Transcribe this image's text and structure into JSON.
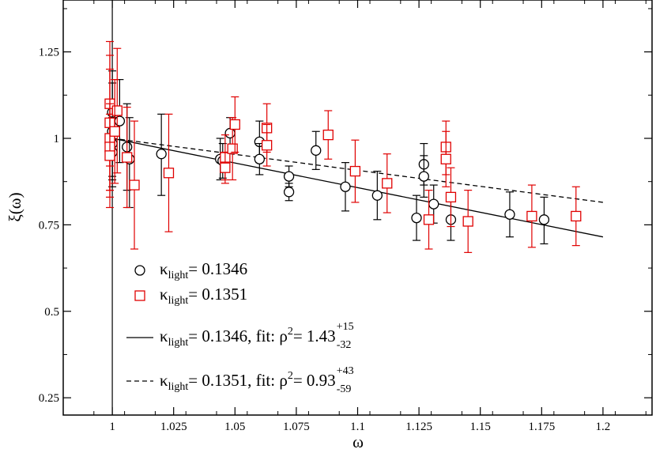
{
  "chart_data": {
    "type": "scatter",
    "title": "",
    "xlabel": "ω",
    "ylabel": "ξ(ω)",
    "xlim": [
      0.98,
      1.22
    ],
    "ylim": [
      0.2,
      1.4
    ],
    "xticks": [
      {
        "value": 1.0,
        "label": "1"
      },
      {
        "value": 1.025,
        "label": "1.025"
      },
      {
        "value": 1.05,
        "label": "1.05"
      },
      {
        "value": 1.075,
        "label": "1.075"
      },
      {
        "value": 1.1,
        "label": "1.1"
      },
      {
        "value": 1.125,
        "label": "1.125"
      },
      {
        "value": 1.15,
        "label": "1.15"
      },
      {
        "value": 1.175,
        "label": "1.175"
      },
      {
        "value": 1.2,
        "label": "1.2"
      }
    ],
    "yticks": [
      {
        "value": 0.25,
        "label": "0.25"
      },
      {
        "value": 0.5,
        "label": "0.5"
      },
      {
        "value": 0.75,
        "label": "0.75"
      },
      {
        "value": 1.0,
        "label": "1"
      },
      {
        "value": 1.25,
        "label": "1.25"
      }
    ],
    "vline_x": 1.0,
    "legend_position": "bottom-left",
    "series": [
      {
        "name": "κlight= 0.1346",
        "legend": {
          "symbol": "κ",
          "sub": "light",
          "text": "= 0.1346"
        },
        "marker": "circle",
        "color": "#000000",
        "points": [
          {
            "x": 1.0,
            "y": 1.075,
            "lo": 0.955,
            "hi": 1.195
          },
          {
            "x": 1.0,
            "y": 1.02,
            "lo": 0.89,
            "hi": 1.16
          },
          {
            "x": 1.0,
            "y": 0.985,
            "lo": 0.88,
            "hi": 1.09
          },
          {
            "x": 1.0,
            "y": 0.96,
            "lo": 0.86,
            "hi": 1.06
          },
          {
            "x": 1.003,
            "y": 1.05,
            "lo": 0.93,
            "hi": 1.17
          },
          {
            "x": 1.006,
            "y": 0.975,
            "lo": 0.85,
            "hi": 1.1
          },
          {
            "x": 1.007,
            "y": 0.94,
            "lo": 0.8,
            "hi": 1.06
          },
          {
            "x": 1.02,
            "y": 0.955,
            "lo": 0.835,
            "hi": 1.07
          },
          {
            "x": 1.044,
            "y": 0.94,
            "lo": 0.88,
            "hi": 1.0
          },
          {
            "x": 1.045,
            "y": 0.935,
            "lo": 0.885,
            "hi": 0.985
          },
          {
            "x": 1.048,
            "y": 1.015,
            "lo": 0.96,
            "hi": 1.06
          },
          {
            "x": 1.06,
            "y": 0.99,
            "lo": 0.93,
            "hi": 1.05
          },
          {
            "x": 1.06,
            "y": 0.94,
            "lo": 0.895,
            "hi": 0.985
          },
          {
            "x": 1.072,
            "y": 0.89,
            "lo": 0.86,
            "hi": 0.92
          },
          {
            "x": 1.072,
            "y": 0.845,
            "lo": 0.82,
            "hi": 0.87
          },
          {
            "x": 1.083,
            "y": 0.965,
            "lo": 0.91,
            "hi": 1.02
          },
          {
            "x": 1.095,
            "y": 0.86,
            "lo": 0.79,
            "hi": 0.93
          },
          {
            "x": 1.108,
            "y": 0.835,
            "lo": 0.765,
            "hi": 0.905
          },
          {
            "x": 1.124,
            "y": 0.77,
            "lo": 0.705,
            "hi": 0.835
          },
          {
            "x": 1.127,
            "y": 0.925,
            "lo": 0.865,
            "hi": 0.985
          },
          {
            "x": 1.127,
            "y": 0.89,
            "lo": 0.83,
            "hi": 0.95
          },
          {
            "x": 1.131,
            "y": 0.81,
            "lo": 0.755,
            "hi": 0.865
          },
          {
            "x": 1.138,
            "y": 0.765,
            "lo": 0.705,
            "hi": 0.825
          },
          {
            "x": 1.162,
            "y": 0.78,
            "lo": 0.715,
            "hi": 0.845
          },
          {
            "x": 1.176,
            "y": 0.765,
            "lo": 0.695,
            "hi": 0.83
          }
        ]
      },
      {
        "name": "κlight= 0.1351",
        "legend": {
          "symbol": "κ",
          "sub": "light",
          "text": "= 0.1351"
        },
        "marker": "square",
        "color": "#e00000",
        "points": [
          {
            "x": 0.999,
            "y": 1.1,
            "lo": 0.92,
            "hi": 1.28
          },
          {
            "x": 0.999,
            "y": 1.045,
            "lo": 0.85,
            "hi": 1.24
          },
          {
            "x": 0.999,
            "y": 1.0,
            "lo": 0.8,
            "hi": 1.2
          },
          {
            "x": 0.999,
            "y": 0.975,
            "lo": 0.85,
            "hi": 1.1
          },
          {
            "x": 0.999,
            "y": 0.95,
            "lo": 0.83,
            "hi": 1.07
          },
          {
            "x": 1.002,
            "y": 1.08,
            "lo": 0.9,
            "hi": 1.26
          },
          {
            "x": 1.001,
            "y": 1.02,
            "lo": 0.87,
            "hi": 1.17
          },
          {
            "x": 1.006,
            "y": 0.945,
            "lo": 0.8,
            "hi": 1.09
          },
          {
            "x": 1.009,
            "y": 0.865,
            "lo": 0.68,
            "hi": 1.05
          },
          {
            "x": 1.023,
            "y": 0.9,
            "lo": 0.73,
            "hi": 1.07
          },
          {
            "x": 1.046,
            "y": 0.945,
            "lo": 0.88,
            "hi": 1.01
          },
          {
            "x": 1.046,
            "y": 0.915,
            "lo": 0.87,
            "hi": 0.96
          },
          {
            "x": 1.049,
            "y": 0.97,
            "lo": 0.88,
            "hi": 1.06
          },
          {
            "x": 1.05,
            "y": 1.04,
            "lo": 0.96,
            "hi": 1.12
          },
          {
            "x": 1.063,
            "y": 1.03,
            "lo": 0.96,
            "hi": 1.1
          },
          {
            "x": 1.063,
            "y": 0.98,
            "lo": 0.92,
            "hi": 1.04
          },
          {
            "x": 1.088,
            "y": 1.01,
            "lo": 0.94,
            "hi": 1.08
          },
          {
            "x": 1.099,
            "y": 0.905,
            "lo": 0.815,
            "hi": 0.995
          },
          {
            "x": 1.112,
            "y": 0.87,
            "lo": 0.785,
            "hi": 0.955
          },
          {
            "x": 1.129,
            "y": 0.765,
            "lo": 0.68,
            "hi": 0.85
          },
          {
            "x": 1.136,
            "y": 0.975,
            "lo": 0.895,
            "hi": 1.05
          },
          {
            "x": 1.136,
            "y": 0.94,
            "lo": 0.86,
            "hi": 1.02
          },
          {
            "x": 1.138,
            "y": 0.83,
            "lo": 0.745,
            "hi": 0.915
          },
          {
            "x": 1.145,
            "y": 0.76,
            "lo": 0.67,
            "hi": 0.85
          },
          {
            "x": 1.171,
            "y": 0.775,
            "lo": 0.685,
            "hi": 0.865
          },
          {
            "x": 1.189,
            "y": 0.775,
            "lo": 0.69,
            "hi": 0.86
          }
        ]
      }
    ],
    "fits": [
      {
        "name": "κlight= 0.1346, fit: ρ2= 1.43",
        "legend": {
          "symbol": "κ",
          "sub": "light",
          "text": "= 0.1346, fit: ρ",
          "pow": "2",
          "value": "= 1.43",
          "err_plus": "+15",
          "err_minus": "-32"
        },
        "style": "solid",
        "color": "#000000",
        "x": [
          1.0,
          1.2
        ],
        "y": [
          1.0,
          0.715
        ]
      },
      {
        "name": "κlight= 0.1351, fit: ρ2= 0.93",
        "legend": {
          "symbol": "κ",
          "sub": "light",
          "text": "= 0.1351, fit: ρ",
          "pow": "2",
          "value": "= 0.93",
          "err_plus": "+43",
          "err_minus": "-59"
        },
        "style": "dashed",
        "color": "#000000",
        "x": [
          1.0,
          1.2
        ],
        "y": [
          1.0,
          0.815
        ]
      }
    ]
  }
}
